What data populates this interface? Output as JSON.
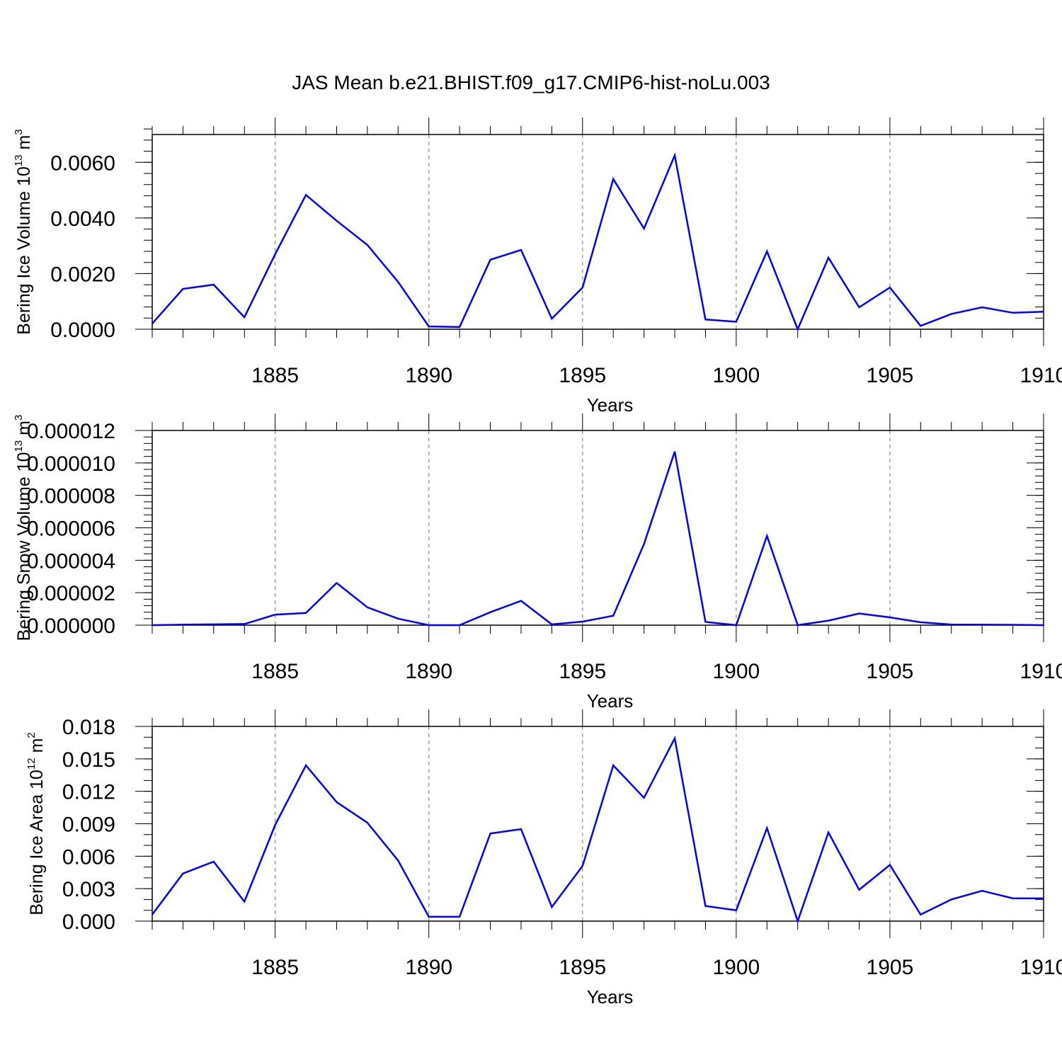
{
  "chart_data": {
    "type": "line",
    "title": "JAS Mean b.e21.BHIST.f09_g17.CMIP6-hist-noLu.003",
    "line_color": "#0000ff",
    "years": [
      1881,
      1882,
      1883,
      1884,
      1885,
      1886,
      1887,
      1888,
      1889,
      1890,
      1891,
      1892,
      1893,
      1894,
      1895,
      1896,
      1897,
      1898,
      1899,
      1900,
      1901,
      1902,
      1903,
      1904,
      1905,
      1906,
      1907,
      1908,
      1909,
      1910
    ],
    "panels": [
      {
        "ylabel": "Bering Ice Volume 10",
        "ylabel_exp": "13",
        "ylabel_unit": " m",
        "ylabel_unit_exp": "3",
        "xlabel": "Years",
        "xlim": [
          1881,
          1910
        ],
        "ylim": [
          0,
          0.007
        ],
        "yticks": [
          0,
          0.002,
          0.004,
          0.006
        ],
        "ytick_labels": [
          "0.0000",
          "0.0020",
          "0.0040",
          "0.0060"
        ],
        "yminor_step": 0.0004,
        "xticks": [
          1885,
          1890,
          1895,
          1900,
          1905,
          1910
        ],
        "xtick_labels": [
          "1885",
          "1890",
          "1895",
          "1900",
          "1905",
          "1910"
        ],
        "values": [
          0.0002,
          0.00145,
          0.0016,
          0.00043,
          0.0027,
          0.00483,
          0.0039,
          0.00303,
          0.0017,
          0.0001,
          8e-05,
          0.0025,
          0.00285,
          0.00038,
          0.0015,
          0.0054,
          0.00362,
          0.00625,
          0.00035,
          0.00027,
          0.0028,
          0.0,
          0.00257,
          0.00079,
          0.0015,
          0.00012,
          0.00055,
          0.00079,
          0.00059,
          0.00063
        ]
      },
      {
        "ylabel": "Bering Snow Volume 10",
        "ylabel_exp": "13",
        "ylabel_unit": " m",
        "ylabel_unit_exp": "3",
        "xlabel": "Years",
        "xlim": [
          1881,
          1910
        ],
        "ylim": [
          0,
          1.2e-05
        ],
        "yticks": [
          0,
          2e-06,
          4e-06,
          6e-06,
          8e-06,
          1e-05,
          1.2e-05
        ],
        "ytick_labels": [
          "0.000000",
          "0.000002",
          "0.000004",
          "0.000006",
          "0.000008",
          "0.000010",
          "0.000012"
        ],
        "yminor_step": 4e-07,
        "xticks": [
          1885,
          1890,
          1895,
          1900,
          1905,
          1910
        ],
        "xtick_labels": [
          "1885",
          "1890",
          "1895",
          "1900",
          "1905",
          "1910"
        ],
        "values": [
          0.0,
          3e-08,
          5e-08,
          7e-08,
          6.5e-07,
          7.5e-07,
          2.6e-06,
          1.1e-06,
          4e-07,
          0.0,
          0.0,
          8e-07,
          1.5e-06,
          5e-08,
          2.2e-07,
          5.8e-07,
          5e-06,
          1.07e-05,
          2e-07,
          0.0,
          5.5e-06,
          0.0,
          2.8e-07,
          7.2e-07,
          4.8e-07,
          1.8e-07,
          4e-08,
          3e-08,
          2e-08,
          0.0
        ]
      },
      {
        "ylabel": "Bering Ice Area 10",
        "ylabel_exp": "12",
        "ylabel_unit": " m",
        "ylabel_unit_exp": "2",
        "xlabel": "Years",
        "xlim": [
          1881,
          1910
        ],
        "ylim": [
          0,
          0.018
        ],
        "yticks": [
          0,
          0.003,
          0.006,
          0.009,
          0.012,
          0.015,
          0.018
        ],
        "ytick_labels": [
          "0.000",
          "0.003",
          "0.006",
          "0.009",
          "0.012",
          "0.015",
          "0.018"
        ],
        "yminor_step": 0.001,
        "xticks": [
          1885,
          1890,
          1895,
          1900,
          1905,
          1910
        ],
        "xtick_labels": [
          "1885",
          "1890",
          "1895",
          "1900",
          "1905",
          "1910"
        ],
        "values": [
          0.0006,
          0.0044,
          0.0055,
          0.0018,
          0.0089,
          0.0144,
          0.011,
          0.0091,
          0.0056,
          0.0004,
          0.0004,
          0.0081,
          0.0085,
          0.0013,
          0.0051,
          0.0144,
          0.0114,
          0.0169,
          0.0014,
          0.001,
          0.0086,
          0.0,
          0.0082,
          0.0029,
          0.0052,
          0.0006,
          0.002,
          0.0028,
          0.0021,
          0.0021
        ]
      }
    ]
  }
}
